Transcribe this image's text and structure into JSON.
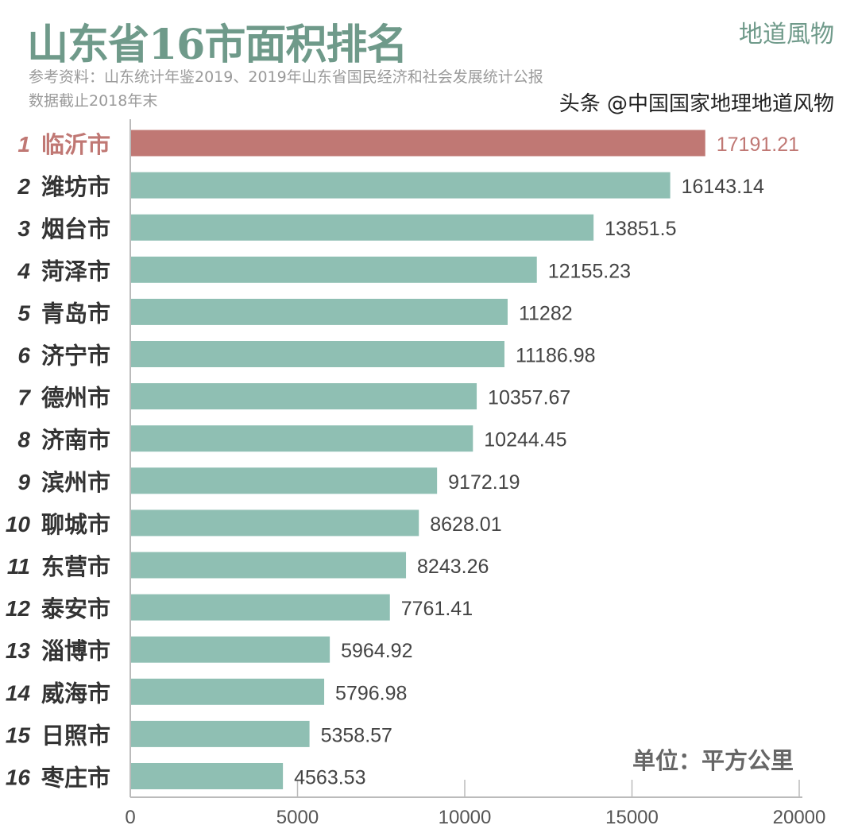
{
  "header": {
    "title": "山东省16市面积排名",
    "brand": "地道風物",
    "source": "参考资料：山东统计年鉴2019、2019年山东省国民经济和社会发展统计公报",
    "note": "数据截止2018年末"
  },
  "unit": "单位：平方公里",
  "watermark": "头条 @中国国家地理地道风物",
  "colors": {
    "highlight": "#c07874",
    "bar": "#8fbfb3",
    "title": "#6f9a8a"
  },
  "chart_data": {
    "type": "bar",
    "orientation": "horizontal",
    "title": "山东省16市面积排名",
    "ranks": [
      "1",
      "2",
      "3",
      "4",
      "5",
      "6",
      "7",
      "8",
      "9",
      "10",
      "11",
      "12",
      "13",
      "14",
      "15",
      "16"
    ],
    "categories": [
      "临沂市",
      "潍坊市",
      "烟台市",
      "菏泽市",
      "青岛市",
      "济宁市",
      "德州市",
      "济南市",
      "滨州市",
      "聊城市",
      "东营市",
      "泰安市",
      "淄博市",
      "威海市",
      "日照市",
      "枣庄市"
    ],
    "values": [
      17191.21,
      16143.14,
      13851.5,
      12155.23,
      11282,
      11186.98,
      10357.67,
      10244.45,
      9172.19,
      8628.01,
      8243.26,
      7761.41,
      5964.92,
      5796.98,
      5358.57,
      4563.53
    ],
    "value_labels": [
      "17191.21",
      "16143.14",
      "13851.5",
      "12155.23",
      "11282",
      "11186.98",
      "10357.67",
      "10244.45",
      "9172.19",
      "8628.01",
      "8243.26",
      "7761.41",
      "5964.92",
      "5796.98",
      "5358.57",
      "4563.53"
    ],
    "xticks": [
      "0",
      "5000",
      "10000",
      "15000",
      "20000"
    ],
    "xlim": [
      0,
      20000
    ],
    "xlabel": "",
    "ylabel": "单位：平方公里",
    "highlight_index": 0
  }
}
